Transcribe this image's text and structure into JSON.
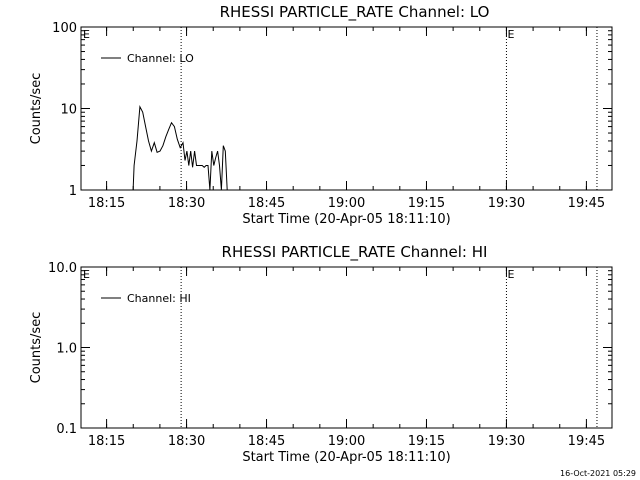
{
  "footer": {
    "timestamp": "16-Oct-2021 05:29"
  },
  "chart_data": [
    {
      "type": "line",
      "title": "RHESSI PARTICLE_RATE Channel: LO",
      "xlabel": "Start Time (20-Apr-05 18:11:10)",
      "ylabel": "Counts/sec",
      "yscale": "log",
      "ylim": [
        1,
        100
      ],
      "yticks": [
        1,
        10,
        100
      ],
      "ytick_labels": [
        "1",
        "10",
        "100"
      ],
      "xlim_minutes": [
        18.17,
        19.83
      ],
      "x_unit": "hours",
      "xticks": [
        18.25,
        18.5,
        18.75,
        19.0,
        19.25,
        19.5,
        19.75
      ],
      "xtick_labels": [
        "18:15",
        "18:30",
        "18:45",
        "19:00",
        "19:15",
        "19:30",
        "19:45"
      ],
      "event_lines": [
        18.483,
        19.5,
        19.783
      ],
      "event_markers": [
        {
          "label": "E",
          "x": 18.17
        },
        {
          "label": "E",
          "x": 19.5
        }
      ],
      "legend": {
        "label": "Channel: LO",
        "placement": "top-left"
      },
      "series": [
        {
          "name": "Channel: LO",
          "x": [
            18.333,
            18.336,
            18.345,
            18.354,
            18.363,
            18.372,
            18.381,
            18.39,
            18.399,
            18.408,
            18.417,
            18.426,
            18.435,
            18.444,
            18.453,
            18.462,
            18.471,
            18.48,
            18.489,
            18.495,
            18.501,
            18.507,
            18.513,
            18.519,
            18.525,
            18.531,
            18.537,
            18.543,
            18.549,
            18.555,
            18.561,
            18.567,
            18.573,
            18.579,
            18.585,
            18.591,
            18.597,
            18.603,
            18.609,
            18.615,
            18.621,
            18.627,
            18.633,
            18.639
          ],
          "values": [
            1,
            2,
            4,
            10.5,
            9,
            6,
            4,
            3,
            3.8,
            2.9,
            3,
            3.5,
            4.5,
            5.5,
            6.7,
            6,
            4.2,
            3.3,
            3.8,
            2.3,
            3,
            2,
            3,
            1.9,
            3,
            2,
            2,
            2,
            2,
            1.9,
            2,
            2,
            1,
            3,
            2,
            2.5,
            3,
            2,
            1,
            3.5,
            3,
            1,
            1,
            1
          ]
        }
      ]
    },
    {
      "type": "line",
      "title": "RHESSI PARTICLE_RATE Channel: HI",
      "xlabel": "Start Time (20-Apr-05 18:11:10)",
      "ylabel": "Counts/sec",
      "yscale": "log",
      "ylim": [
        0.1,
        10
      ],
      "yticks": [
        0.1,
        1,
        10
      ],
      "ytick_labels": [
        "0.1",
        "1.0",
        "10.0"
      ],
      "xlim_minutes": [
        18.17,
        19.83
      ],
      "x_unit": "hours",
      "xticks": [
        18.25,
        18.5,
        18.75,
        19.0,
        19.25,
        19.5,
        19.75
      ],
      "xtick_labels": [
        "18:15",
        "18:30",
        "18:45",
        "19:00",
        "19:15",
        "19:30",
        "19:45"
      ],
      "event_lines": [
        18.483,
        19.5,
        19.783
      ],
      "event_markers": [
        {
          "label": "E",
          "x": 18.17
        },
        {
          "label": "E",
          "x": 19.5
        }
      ],
      "legend": {
        "label": "Channel: HI",
        "placement": "top-left"
      },
      "series": [
        {
          "name": "Channel: HI",
          "x": [],
          "values": []
        }
      ]
    }
  ]
}
